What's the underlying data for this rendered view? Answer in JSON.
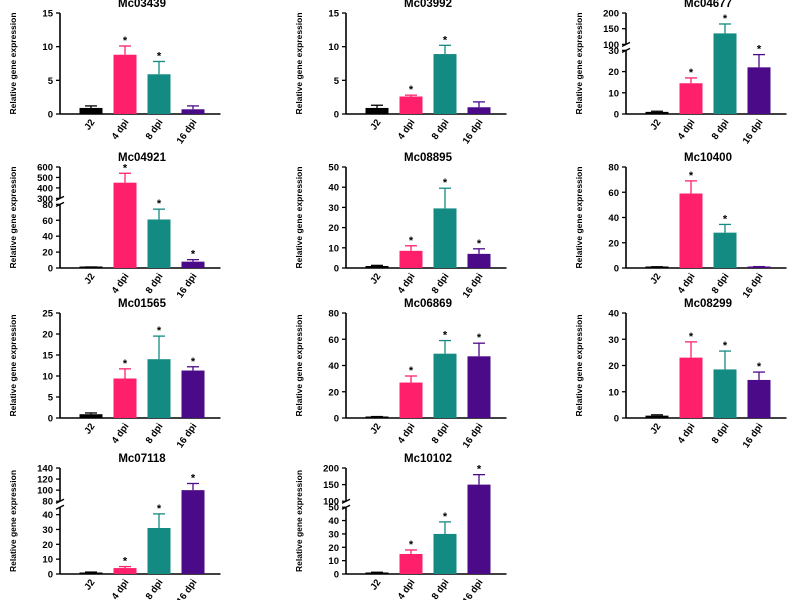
{
  "chart_data": [
    {
      "type": "bar",
      "title": "Mc03439",
      "ylabel": "Relative gene expression",
      "categories": [
        "J2",
        "4 dpi",
        "8 dpi",
        "16 dpi"
      ],
      "values": [
        0.9,
        8.8,
        5.9,
        0.7
      ],
      "errors": [
        0.3,
        1.3,
        1.9,
        0.5
      ],
      "significant": [
        false,
        true,
        true,
        false
      ],
      "ylim": [
        0,
        15
      ],
      "yticks": [
        0,
        5,
        10,
        15
      ],
      "colors": [
        "#000000",
        "#ff1f6b",
        "#138a82",
        "#4b0a87"
      ]
    },
    {
      "type": "bar",
      "title": "Mc03992",
      "ylabel": "Relative gene expression",
      "categories": [
        "J2",
        "4 dpi",
        "8 dpi",
        "16 dpi"
      ],
      "values": [
        0.9,
        2.6,
        8.9,
        1.0
      ],
      "errors": [
        0.4,
        0.2,
        1.3,
        0.8
      ],
      "significant": [
        false,
        true,
        true,
        false
      ],
      "ylim": [
        0,
        15
      ],
      "yticks": [
        0,
        5,
        10,
        15
      ],
      "colors": [
        "#000000",
        "#ff1f6b",
        "#138a82",
        "#4b0a87"
      ]
    },
    {
      "type": "bar",
      "title": "Mc04677",
      "ylabel": "Relative gene expression",
      "categories": [
        "J2",
        "4 dpi",
        "8 dpi",
        "16 dpi"
      ],
      "values": [
        1,
        14.5,
        135,
        22
      ],
      "errors": [
        0.3,
        2.5,
        30,
        6
      ],
      "significant": [
        false,
        true,
        true,
        true
      ],
      "ylim": [
        0,
        200
      ],
      "yticks": [
        0,
        10,
        20,
        30,
        100,
        150,
        200
      ],
      "break": [
        30,
        100
      ],
      "colors": [
        "#000000",
        "#ff1f6b",
        "#138a82",
        "#4b0a87"
      ]
    },
    {
      "type": "bar",
      "title": "Mc04921",
      "ylabel": "Relative gene expression",
      "categories": [
        "J2",
        "4 dpi",
        "8 dpi",
        "16 dpi"
      ],
      "values": [
        1,
        450,
        61,
        8
      ],
      "errors": [
        0.3,
        90,
        13,
        2.5
      ],
      "significant": [
        false,
        true,
        true,
        true
      ],
      "ylim": [
        0,
        600
      ],
      "yticks": [
        0,
        20,
        40,
        60,
        80,
        300,
        400,
        500,
        600
      ],
      "break": [
        80,
        300
      ],
      "colors": [
        "#000000",
        "#ff1f6b",
        "#138a82",
        "#4b0a87"
      ]
    },
    {
      "type": "bar",
      "title": "Mc08895",
      "ylabel": "Relative gene expression",
      "categories": [
        "J2",
        "4 dpi",
        "8 dpi",
        "16 dpi"
      ],
      "values": [
        1,
        8.5,
        29.5,
        7
      ],
      "errors": [
        0.3,
        2.5,
        10,
        2.5
      ],
      "significant": [
        false,
        true,
        true,
        true
      ],
      "ylim": [
        0,
        50
      ],
      "yticks": [
        0,
        10,
        20,
        30,
        40,
        50
      ],
      "colors": [
        "#000000",
        "#ff1f6b",
        "#138a82",
        "#4b0a87"
      ]
    },
    {
      "type": "bar",
      "title": "Mc10400",
      "ylabel": "Relative gene expression",
      "categories": [
        "J2",
        "4 dpi",
        "8 dpi",
        "16 dpi"
      ],
      "values": [
        0.8,
        59,
        28,
        0.8
      ],
      "errors": [
        0.2,
        10,
        6.5,
        0.3
      ],
      "significant": [
        false,
        true,
        true,
        false
      ],
      "ylim": [
        0,
        80
      ],
      "yticks": [
        0,
        20,
        40,
        60,
        80
      ],
      "colors": [
        "#000000",
        "#ff1f6b",
        "#138a82",
        "#4b0a87"
      ]
    },
    {
      "type": "bar",
      "title": "Mc01565",
      "ylabel": "Relative gene expression",
      "categories": [
        "J2",
        "4 dpi",
        "8 dpi",
        "16 dpi"
      ],
      "values": [
        0.9,
        9.4,
        14,
        11.3
      ],
      "errors": [
        0.3,
        2.3,
        5.5,
        0.9
      ],
      "significant": [
        false,
        true,
        true,
        true
      ],
      "ylim": [
        0,
        25
      ],
      "yticks": [
        0,
        5,
        10,
        15,
        20,
        25
      ],
      "colors": [
        "#000000",
        "#ff1f6b",
        "#138a82",
        "#4b0a87"
      ]
    },
    {
      "type": "bar",
      "title": "Mc06869",
      "ylabel": "Relative gene expression",
      "categories": [
        "J2",
        "4 dpi",
        "8 dpi",
        "16 dpi"
      ],
      "values": [
        0.8,
        27,
        49,
        47
      ],
      "errors": [
        0.3,
        5,
        10,
        10
      ],
      "significant": [
        false,
        true,
        true,
        true
      ],
      "ylim": [
        0,
        80
      ],
      "yticks": [
        0,
        20,
        40,
        60,
        80
      ],
      "colors": [
        "#000000",
        "#ff1f6b",
        "#138a82",
        "#4b0a87"
      ]
    },
    {
      "type": "bar",
      "title": "Mc08299",
      "ylabel": "Relative gene expression",
      "categories": [
        "J2",
        "4 dpi",
        "8 dpi",
        "16 dpi"
      ],
      "values": [
        0.9,
        23,
        18.5,
        14.5
      ],
      "errors": [
        0.3,
        6,
        7,
        3
      ],
      "significant": [
        false,
        true,
        true,
        true
      ],
      "ylim": [
        0,
        40
      ],
      "yticks": [
        0,
        10,
        20,
        30,
        40
      ],
      "colors": [
        "#000000",
        "#ff1f6b",
        "#138a82",
        "#4b0a87"
      ]
    },
    {
      "type": "bar",
      "title": "Mc07118",
      "ylabel": "Relative gene expression",
      "categories": [
        "J2",
        "4 dpi",
        "8 dpi",
        "16 dpi"
      ],
      "values": [
        1,
        4,
        31,
        100
      ],
      "errors": [
        0.3,
        1,
        9.5,
        12
      ],
      "significant": [
        false,
        true,
        true,
        true
      ],
      "ylim": [
        0,
        140
      ],
      "yticks": [
        0,
        10,
        20,
        30,
        40,
        80,
        100,
        120,
        140
      ],
      "break": [
        45,
        80
      ],
      "colors": [
        "#000000",
        "#ff1f6b",
        "#138a82",
        "#4b0a87"
      ]
    },
    {
      "type": "bar",
      "title": "Mc10102",
      "ylabel": "Relative gene expression",
      "categories": [
        "J2",
        "4 dpi",
        "8 dpi",
        "16 dpi"
      ],
      "values": [
        1,
        15,
        30,
        150
      ],
      "errors": [
        0.3,
        3,
        9,
        30
      ],
      "significant": [
        false,
        true,
        true,
        true
      ],
      "ylim": [
        0,
        200
      ],
      "yticks": [
        0,
        10,
        20,
        30,
        40,
        50,
        100,
        150,
        200
      ],
      "break": [
        50,
        100
      ],
      "colors": [
        "#000000",
        "#ff1f6b",
        "#138a82",
        "#4b0a87"
      ]
    }
  ]
}
